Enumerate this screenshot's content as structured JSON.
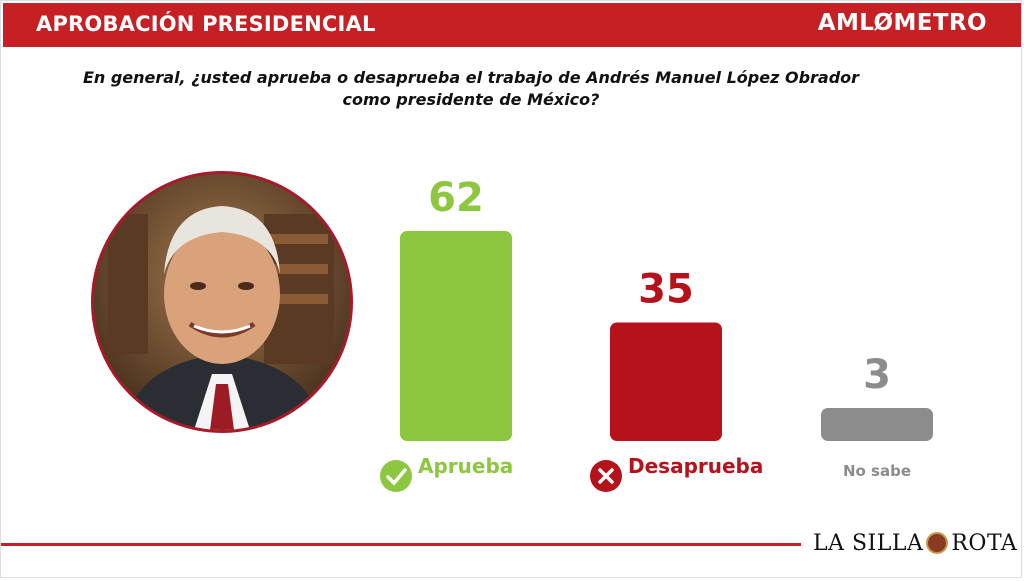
{
  "header": {
    "title": "APROBACIÓN PRESIDENCIAL",
    "brand": "AMLØMETRO"
  },
  "question": {
    "line1": "En general, ¿usted aprueba o desaprueba el trabajo de Andrés Manuel López Obrador",
    "line2": "como presidente de México?"
  },
  "footer": {
    "logo_left": "LA SILLA",
    "logo_right": "ROTA"
  },
  "colors": {
    "header_red": "#c61f24",
    "approve_green": "#8dc63f",
    "disapprove_red": "#b5121b",
    "unknown_gray": "#8c8c8c"
  },
  "chart_data": {
    "type": "bar",
    "categories": [
      "Aprueba",
      "Desaprueba",
      "No sabe"
    ],
    "values": [
      62,
      35,
      3
    ],
    "value_labels": [
      "62",
      "35",
      "3"
    ],
    "colors": [
      "#8dc63f",
      "#b5121b",
      "#8c8c8c"
    ],
    "icons": [
      "check-circle-icon",
      "x-circle-icon",
      ""
    ],
    "ylim": [
      0,
      62
    ]
  }
}
